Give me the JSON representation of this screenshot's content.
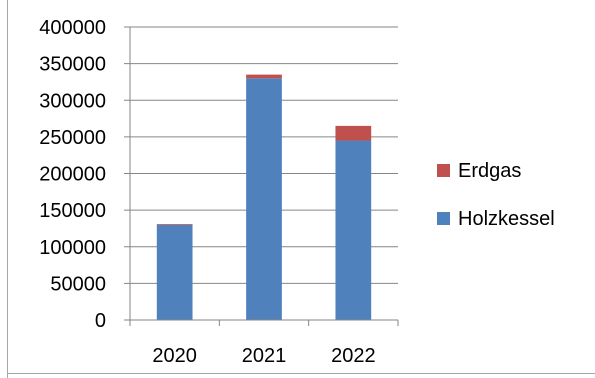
{
  "chart_data": {
    "type": "bar",
    "stacked": true,
    "categories": [
      "2020",
      "2021",
      "2022"
    ],
    "series": [
      {
        "name": "Holzkessel",
        "values": [
          130000,
          330000,
          245000
        ],
        "color": "#4f81bd"
      },
      {
        "name": "Erdgas",
        "values": [
          1000,
          5000,
          20000
        ],
        "color": "#c0504d"
      }
    ],
    "ylim": [
      0,
      400000
    ],
    "yticks": [
      0,
      50000,
      100000,
      150000,
      200000,
      250000,
      300000,
      350000,
      400000
    ],
    "title": "",
    "xlabel": "",
    "ylabel": "",
    "grid": true,
    "legend_position": "right"
  }
}
